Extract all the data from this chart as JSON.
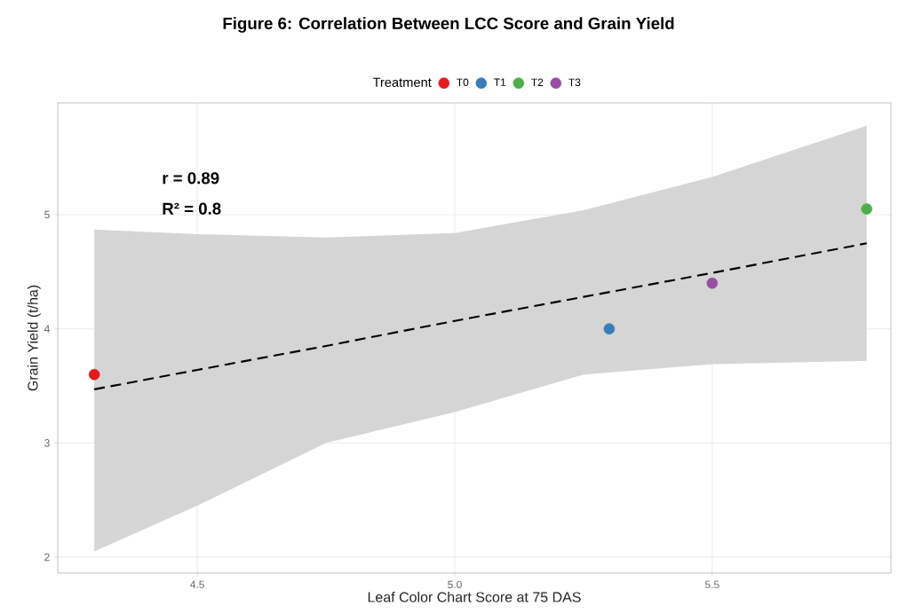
{
  "chart_data": {
    "type": "scatter",
    "title": "Figure 6: Correlation Between LCC Score and Grain Yield",
    "xlabel": "Leaf Color Chart Score at 75 DAS",
    "ylabel": "Grain Yield (t/ha)",
    "legend_title": "Treatment",
    "xlim": [
      4.229,
      5.847
    ],
    "ylim": [
      1.86,
      5.98
    ],
    "xticks": [
      4.5,
      {
        "value": 5,
        "label": "5.0"
      },
      5.5
    ],
    "yticks": [
      2,
      3,
      4,
      5
    ],
    "grid": true,
    "legend": "top",
    "marker": "circle",
    "annotations": [
      "r = 0.89",
      "R² = 0.8"
    ],
    "series": [
      {
        "type": "line",
        "color": "#000000",
        "line_style": "dashed",
        "marker": "none",
        "x": [
          4.3,
          4.5,
          4.75,
          5.0,
          5.25,
          5.5,
          5.8
        ],
        "values": [
          3.47,
          3.64,
          3.85,
          4.07,
          4.28,
          4.49,
          4.75
        ],
        "lower": [
          2.05,
          2.45,
          3.0,
          3.27,
          3.6,
          3.69,
          3.72
        ],
        "upper": [
          4.87,
          4.83,
          4.8,
          4.84,
          5.04,
          5.33,
          5.78
        ]
      },
      {
        "name": "T0",
        "color": "#e41a1c",
        "x": [
          4.3
        ],
        "values": [
          3.6
        ]
      },
      {
        "name": "T1",
        "color": "#377eb8",
        "x": [
          5.3
        ],
        "values": [
          4.0
        ]
      },
      {
        "name": "T2",
        "color": "#4daf4a",
        "x": [
          5.8
        ],
        "values": [
          5.05
        ]
      },
      {
        "name": "T3",
        "color": "#984ea3",
        "x": [
          5.5
        ],
        "values": [
          4.4
        ]
      }
    ]
  }
}
